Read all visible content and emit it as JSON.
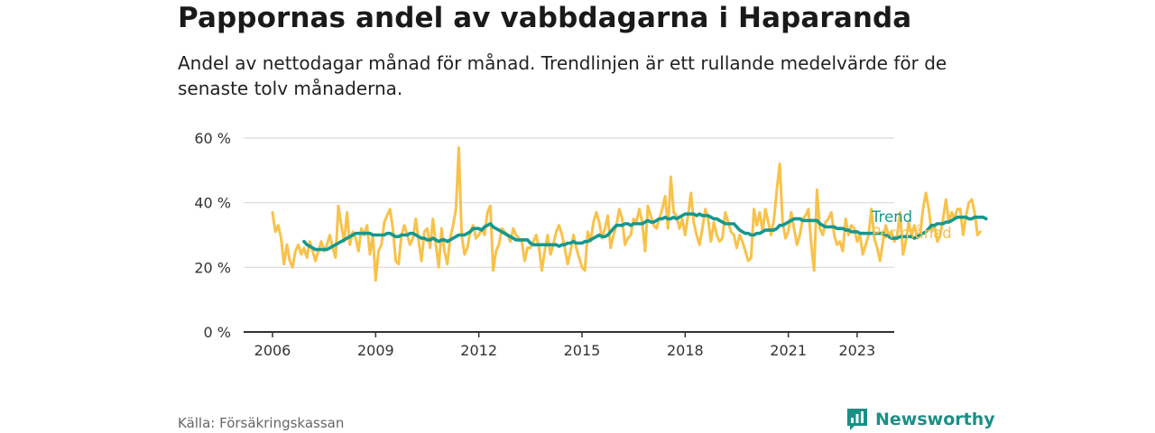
{
  "header": {
    "title": "Pappornas andel av vabbdagarna i Haparanda",
    "subtitle": "Andel av nettodagar månad för månad. Trendlinjen är ett rullande medelvärde för de senaste tolv månaderna."
  },
  "footer": {
    "source": "Källa: Försäkringskassan",
    "brand": "Newsworthy"
  },
  "colors": {
    "trend": "#16988e",
    "monthly": "#f8c24a",
    "grid": "#d9d9d9",
    "axis": "#333333",
    "brand": "#1a8f86"
  },
  "chart_data": {
    "type": "line",
    "x_start": "2006-01",
    "x_end": "2023-05",
    "ylim": [
      0,
      60
    ],
    "y_ticks": [
      {
        "value": 0,
        "label": "0 %"
      },
      {
        "value": 20,
        "label": "20 %"
      },
      {
        "value": 40,
        "label": "40 %"
      },
      {
        "value": 60,
        "label": "60 %"
      }
    ],
    "x_ticks": [
      "2006",
      "2009",
      "2012",
      "2015",
      "2018",
      "2021",
      "2023"
    ],
    "grid": true,
    "series": [
      {
        "name": "Per månad",
        "start": "2006-01",
        "values": [
          37,
          31,
          33,
          29,
          21,
          27,
          22,
          20,
          25,
          27,
          24,
          26,
          23,
          28,
          25,
          22,
          25,
          28,
          25,
          27,
          30,
          26,
          23,
          39,
          33,
          28,
          37,
          27,
          31,
          29,
          25,
          32,
          30,
          33,
          24,
          30,
          16,
          25,
          27,
          34,
          36,
          38,
          32,
          22,
          21,
          30,
          33,
          30,
          27,
          29,
          35,
          28,
          22,
          31,
          32,
          26,
          35,
          27,
          20,
          32,
          25,
          21,
          29,
          33,
          38,
          57,
          30,
          24,
          26,
          31,
          33,
          29,
          30,
          32,
          30,
          37,
          39,
          19,
          25,
          27,
          32,
          31,
          30,
          28,
          32,
          30,
          29,
          28,
          22,
          26,
          26,
          28,
          30,
          26,
          19,
          25,
          30,
          24,
          27,
          31,
          33,
          30,
          26,
          21,
          25,
          30,
          26,
          23,
          20,
          19,
          31,
          28,
          34,
          37,
          34,
          29,
          32,
          36,
          26,
          30,
          33,
          38,
          35,
          27,
          29,
          30,
          35,
          34,
          38,
          34,
          25,
          39,
          36,
          33,
          32,
          35,
          38,
          42,
          32,
          48,
          37,
          36,
          32,
          35,
          30,
          36,
          43,
          34,
          30,
          27,
          32,
          38,
          35,
          28,
          34,
          30,
          28,
          29,
          37,
          34,
          31,
          30,
          26,
          30,
          28,
          25,
          22,
          23,
          38,
          33,
          37,
          31,
          38,
          34,
          30,
          35,
          44,
          52,
          34,
          29,
          31,
          37,
          32,
          27,
          30,
          35,
          36,
          38,
          27,
          19,
          44,
          32,
          30,
          34,
          35,
          37,
          30,
          27,
          28,
          25,
          35,
          30,
          33,
          32,
          28,
          30,
          24,
          27,
          30,
          38,
          29,
          26,
          22,
          28,
          33,
          30,
          31,
          28,
          30,
          37,
          24,
          28,
          34,
          30,
          33,
          29,
          30,
          38,
          43,
          38,
          31,
          33,
          28,
          30,
          35,
          41,
          34,
          37,
          35,
          38,
          38,
          30,
          36,
          40,
          41,
          37,
          30,
          31
        ]
      },
      {
        "name": "Trend",
        "start": "2006-12",
        "values": [
          28,
          27,
          26.5,
          26,
          25.5,
          25.5,
          25.5,
          25.5,
          25.5,
          26,
          26.5,
          27,
          27.5,
          28,
          28.5,
          29,
          29.5,
          30,
          30.5,
          30.5,
          30.5,
          30.5,
          30.5,
          30.5,
          30,
          30,
          30,
          30,
          30,
          30.5,
          30.5,
          30,
          29.5,
          29.5,
          30,
          30,
          30,
          30.5,
          30.5,
          30,
          29.5,
          29,
          29,
          28.5,
          28.5,
          29,
          28.5,
          28,
          28.5,
          28.5,
          28,
          28.5,
          29,
          29.5,
          30,
          30,
          30,
          30.5,
          31,
          32,
          32,
          32,
          31.5,
          32.5,
          33,
          33.5,
          32.5,
          32,
          31.5,
          31,
          30.5,
          30,
          29.5,
          29,
          28.5,
          28.5,
          28.5,
          28.5,
          28.5,
          27.5,
          27,
          27,
          27,
          27,
          27,
          27,
          27,
          27,
          27,
          26.5,
          27,
          27,
          27.5,
          27.5,
          28,
          27.5,
          27.5,
          27.5,
          28,
          28,
          28.5,
          29,
          29.5,
          30,
          29.5,
          29.5,
          30,
          31,
          32,
          33,
          33,
          33,
          33.5,
          33.5,
          33,
          33.5,
          33.5,
          33.5,
          33.5,
          34,
          34.5,
          34,
          34,
          34.5,
          35,
          35,
          35.5,
          35,
          35,
          35.5,
          35,
          35.5,
          36,
          36.5,
          36.5,
          36.5,
          36.5,
          36,
          36.5,
          36,
          36,
          36,
          35.5,
          35,
          35,
          34.5,
          34,
          33.5,
          33.5,
          33.5,
          33.5,
          32.5,
          31.5,
          31,
          30.5,
          30.5,
          30,
          30,
          30.5,
          30.5,
          31,
          31.5,
          31.5,
          31.5,
          31.5,
          32,
          33,
          33,
          33.5,
          34,
          34.5,
          35,
          35,
          35,
          34.5,
          34.5,
          34.5,
          34.5,
          34.5,
          34.5,
          33.5,
          33,
          32.5,
          32.5,
          32.5,
          32.5,
          32,
          32,
          32,
          31.5,
          31.5,
          31,
          31,
          31,
          30.5,
          30.5,
          30.5,
          30.5,
          30.5,
          30.5,
          30.5,
          30.5,
          30.5,
          30,
          29.5,
          29,
          29,
          29,
          29.5,
          29.5,
          29.5,
          29.5,
          29.5,
          29,
          29.5,
          30,
          30.5,
          31,
          32,
          33,
          33,
          33.5,
          33.5,
          33.5,
          34,
          34,
          34.5,
          35,
          35.5,
          35.5,
          35.5,
          35.5,
          35,
          35,
          35.5,
          35.5,
          35.5,
          35.5,
          35
        ]
      }
    ]
  }
}
